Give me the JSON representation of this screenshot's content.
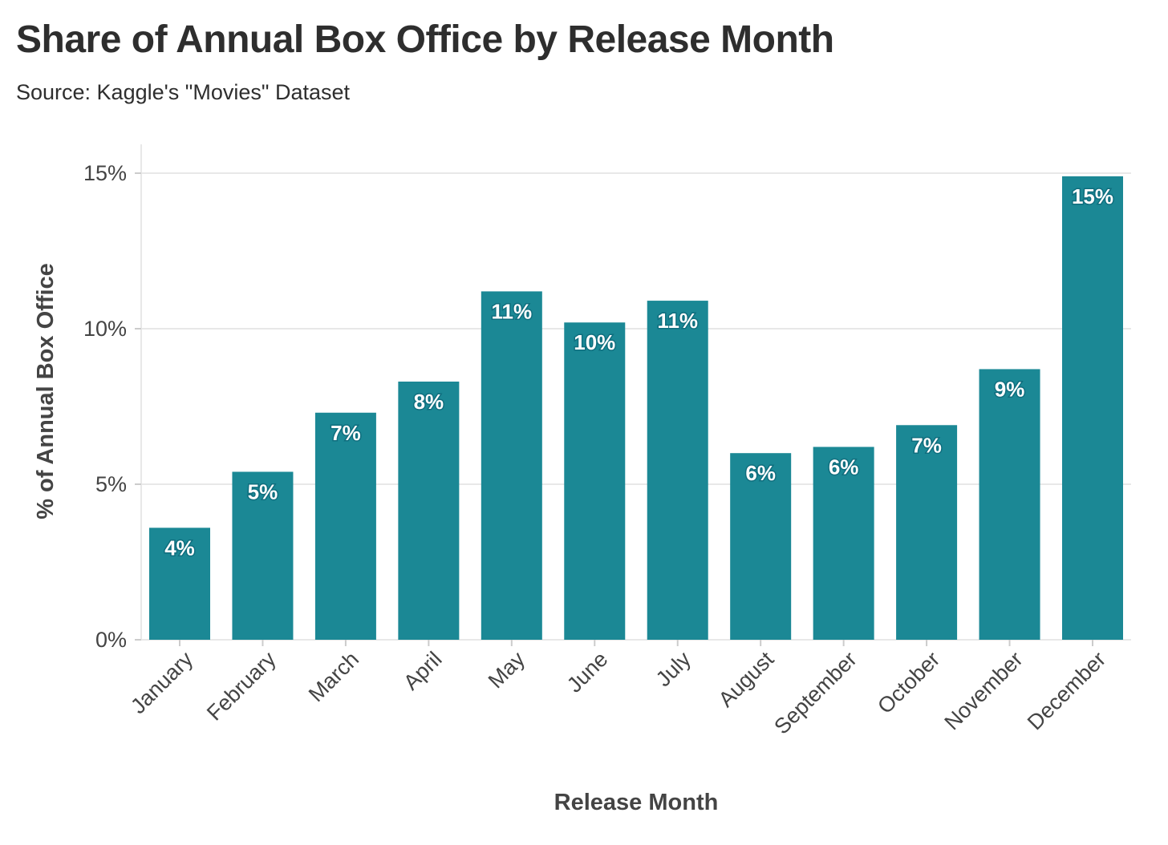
{
  "title": "Share of Annual Box Office by Release Month",
  "subtitle": "Source: Kaggle's \"Movies\" Dataset",
  "colors": {
    "bar": "#1b8895",
    "grid": "#e8e8e8",
    "axis": "#cccccc"
  },
  "chart_data": {
    "type": "bar",
    "title": "Share of Annual Box Office by Release Month",
    "subtitle": "Source: Kaggle's \"Movies\" Dataset",
    "xlabel": "Release Month",
    "ylabel": "% of Annual Box Office",
    "categories": [
      "January",
      "February",
      "March",
      "April",
      "May",
      "June",
      "July",
      "August",
      "September",
      "October",
      "November",
      "December"
    ],
    "values": [
      3.6,
      5.4,
      7.3,
      8.3,
      11.2,
      10.2,
      10.9,
      6.0,
      6.2,
      6.9,
      8.7,
      14.9
    ],
    "data_labels": [
      "4%",
      "5%",
      "7%",
      "8%",
      "11%",
      "10%",
      "11%",
      "6%",
      "6%",
      "7%",
      "9%",
      "15%"
    ],
    "yticks": [
      0,
      5,
      10,
      15
    ],
    "ytick_labels": [
      "0%",
      "5%",
      "10%",
      "15%"
    ],
    "ylim": [
      0,
      16
    ],
    "grid": true,
    "legend": "none"
  }
}
